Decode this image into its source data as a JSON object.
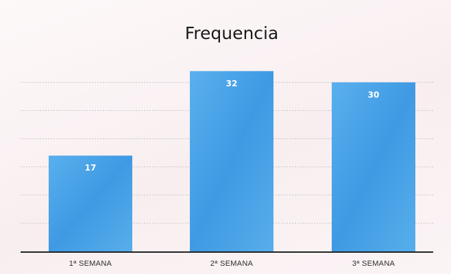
{
  "chart_data": {
    "type": "bar",
    "title": "Frequencia",
    "xlabel": "",
    "ylabel": "",
    "categories": [
      "1ª SEMANA",
      "2ª SEMANA",
      "3ª SEMANA"
    ],
    "values": [
      17,
      32,
      30
    ],
    "data_labels": [
      "17",
      "32",
      "30"
    ],
    "ylim": [
      0,
      40
    ],
    "grid": true,
    "legend": "none",
    "bar_color": "#4aa3e6",
    "axis_color": "#222222"
  }
}
